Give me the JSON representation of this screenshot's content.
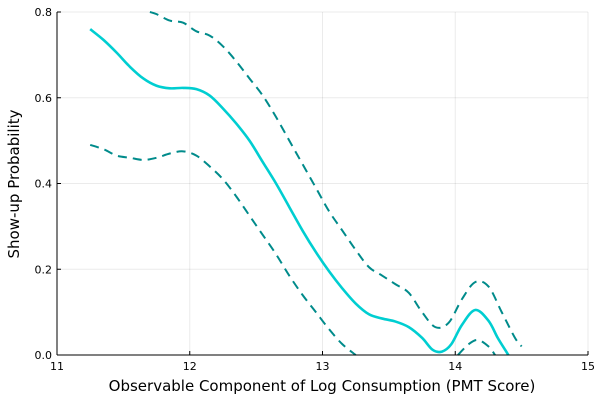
{
  "chart_data": {
    "type": "line",
    "title": "",
    "xlabel": "Observable Component of Log Consumption (PMT Score)",
    "ylabel": "Show-up Probability",
    "xlim": [
      11,
      15
    ],
    "ylim": [
      0,
      0.8
    ],
    "x_ticks": [
      11,
      12,
      13,
      14,
      15
    ],
    "x_tick_labels": [
      "11",
      "12",
      "13",
      "14",
      "15"
    ],
    "y_ticks": [
      0.0,
      0.2,
      0.4,
      0.6,
      0.8
    ],
    "y_tick_labels": [
      "0.0",
      "0.2",
      "0.4",
      "0.6",
      "0.8"
    ],
    "grid": true,
    "legend": "none",
    "series": [
      {
        "role": "estimate",
        "style": "solid",
        "color": "#00CED1",
        "x": [
          11.25,
          11.35,
          11.45,
          11.55,
          11.65,
          11.75,
          11.85,
          11.95,
          12.05,
          12.15,
          12.25,
          12.35,
          12.45,
          12.55,
          12.65,
          12.75,
          12.85,
          12.95,
          13.05,
          13.15,
          13.25,
          13.35,
          13.45,
          13.55,
          13.65,
          13.75,
          13.83,
          13.9,
          13.97,
          14.05,
          14.15,
          14.25,
          14.32,
          14.38,
          14.4
        ],
        "y": [
          0.76,
          0.735,
          0.705,
          0.672,
          0.645,
          0.628,
          0.622,
          0.623,
          0.62,
          0.605,
          0.575,
          0.54,
          0.5,
          0.45,
          0.4,
          0.345,
          0.29,
          0.24,
          0.195,
          0.155,
          0.12,
          0.095,
          0.085,
          0.078,
          0.065,
          0.04,
          0.012,
          0.008,
          0.025,
          0.07,
          0.105,
          0.08,
          0.04,
          0.01,
          0.0
        ]
      },
      {
        "role": "upper confidence band",
        "style": "dashed",
        "color": "#008B8B",
        "x": [
          11.7,
          11.75,
          11.85,
          11.95,
          12.05,
          12.15,
          12.25,
          12.35,
          12.45,
          12.55,
          12.65,
          12.75,
          12.85,
          12.95,
          13.05,
          13.15,
          13.25,
          13.35,
          13.45,
          13.55,
          13.65,
          13.75,
          13.85,
          13.95,
          14.05,
          14.15,
          14.25,
          14.35,
          14.45,
          14.5
        ],
        "y": [
          0.8,
          0.795,
          0.78,
          0.775,
          0.755,
          0.745,
          0.72,
          0.685,
          0.645,
          0.605,
          0.555,
          0.5,
          0.445,
          0.39,
          0.335,
          0.29,
          0.245,
          0.205,
          0.185,
          0.165,
          0.145,
          0.1,
          0.065,
          0.075,
          0.13,
          0.17,
          0.16,
          0.1,
          0.04,
          0.02
        ]
      },
      {
        "role": "lower confidence band",
        "style": "dashed",
        "color": "#008B8B",
        "x": [
          11.25,
          11.35,
          11.45,
          11.55,
          11.65,
          11.75,
          11.85,
          11.95,
          12.05,
          12.15,
          12.25,
          12.35,
          12.45,
          12.55,
          12.65,
          12.75,
          12.85,
          12.95,
          13.05,
          13.15,
          13.25
        ],
        "y": [
          0.49,
          0.48,
          0.465,
          0.46,
          0.455,
          0.46,
          0.47,
          0.475,
          0.465,
          0.44,
          0.41,
          0.37,
          0.325,
          0.28,
          0.235,
          0.185,
          0.14,
          0.1,
          0.06,
          0.025,
          0.0
        ]
      },
      {
        "role": "lower confidence band",
        "style": "dashed",
        "color": "#008B8B",
        "x": [
          14.02,
          14.1,
          14.17,
          14.25,
          14.3
        ],
        "y": [
          0.0,
          0.025,
          0.035,
          0.02,
          0.0
        ]
      }
    ]
  }
}
